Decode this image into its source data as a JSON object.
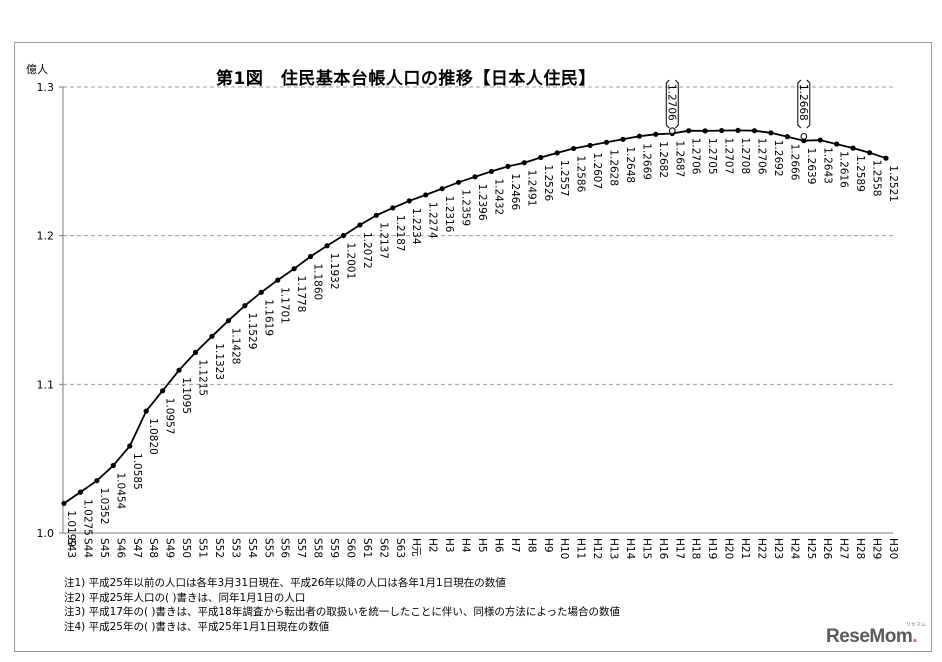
{
  "chart_data": {
    "type": "line",
    "title": "第1図　住民基本台帳人口の推移【日本人住民】",
    "ylabel": "億人",
    "ylim": [
      1.0,
      1.3
    ],
    "yticks": [
      "1.0",
      "1.1",
      "1.2",
      "1.3"
    ],
    "grid": "horizontal-dashed",
    "x": [
      "S43",
      "S44",
      "S45",
      "S46",
      "S47",
      "S48",
      "S49",
      "S50",
      "S51",
      "S52",
      "S53",
      "S54",
      "S55",
      "S56",
      "S57",
      "S58",
      "S59",
      "S60",
      "S61",
      "S62",
      "S63",
      "H元",
      "H2",
      "H3",
      "H4",
      "H5",
      "H6",
      "H7",
      "H8",
      "H9",
      "H10",
      "H11",
      "H12",
      "H13",
      "H14",
      "H15",
      "H16",
      "H17",
      "H18",
      "H19",
      "H20",
      "H21",
      "H22",
      "H23",
      "H24",
      "H25",
      "H26",
      "H27",
      "H28",
      "H29",
      "H30"
    ],
    "series": [
      {
        "values": [
          1.0199,
          1.0275,
          1.0352,
          1.0454,
          1.0585,
          1.082,
          1.0957,
          1.1095,
          1.1215,
          1.1323,
          1.1428,
          1.1529,
          1.1619,
          1.1701,
          1.1778,
          1.186,
          1.1932,
          1.2001,
          1.2072,
          1.2137,
          1.2187,
          1.2234,
          1.2274,
          1.2316,
          1.2359,
          1.2396,
          1.2432,
          1.2466,
          1.2491,
          1.2526,
          1.2557,
          1.2586,
          1.2607,
          1.2628,
          1.2648,
          1.2669,
          1.2682,
          1.2687,
          1.2706,
          1.2705,
          1.2707,
          1.2708,
          1.2706,
          1.2692,
          1.2666,
          1.2639,
          1.2643,
          1.2616,
          1.2589,
          1.2558,
          1.2521
        ],
        "labels": [
          "1.0199",
          "1.0275",
          "1.0352",
          "1.0454",
          "1.0585",
          "1.0820",
          "1.0957",
          "1.1095",
          "1.1215",
          "1.1323",
          "1.1428",
          "1.1529",
          "1.1619",
          "1.1701",
          "1.1778",
          "1.1860",
          "1.1932",
          "1.2001",
          "1.2072",
          "1.2137",
          "1.2187",
          "1.2234",
          "1.2274",
          "1.2316",
          "1.2359",
          "1.2396",
          "1.2432",
          "1.2466",
          "1.2491",
          "1.2526",
          "1.2557",
          "1.2586",
          "1.2607",
          "1.2628",
          "1.2648",
          "1.2669",
          "1.2682",
          "1.2687",
          "1.2706",
          "1.2705",
          "1.2707",
          "1.2708",
          "1.2706",
          "1.2692",
          "1.2666",
          "1.2639",
          "1.2643",
          "1.2616",
          "1.2589",
          "1.2558",
          "1.2521"
        ]
      }
    ],
    "annotations": [
      {
        "x": "H17",
        "value": 1.2706,
        "text": "1.2706"
      },
      {
        "x": "H25",
        "value": 1.2668,
        "text": "1.2668"
      }
    ],
    "notes": [
      "注1) 平成25年以前の人口は各年3月31日現在、平成26年以降の人口は各年1月1日現在の数値",
      "注2) 平成25年人口の( )書きは、同年1月1日の人口",
      "注3) 平成17年の( )書きは、平成18年調査から転出者の取扱いを統一したことに伴い、同様の方法によった場合の数値",
      "注4) 平成25年の( )書きは、平成25年1月1日現在の数値"
    ]
  },
  "logo": {
    "part1": "Rese",
    "part2": "Mom",
    "dot": ".",
    "sub": "リセマム"
  }
}
